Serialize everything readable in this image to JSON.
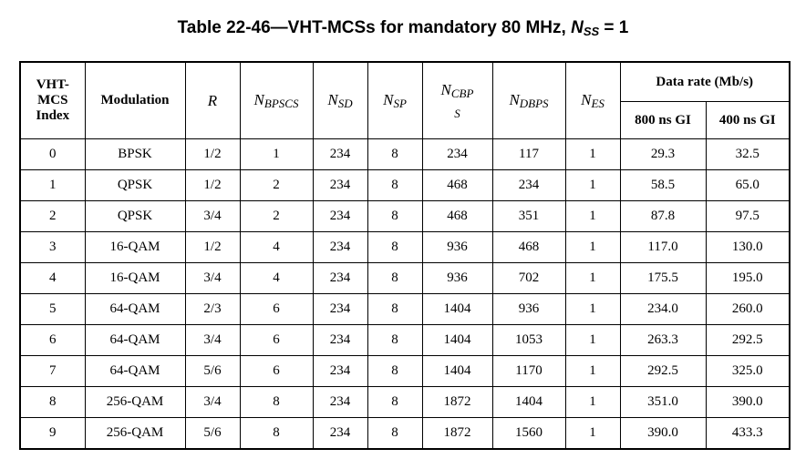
{
  "caption": {
    "prefix": "Table 22-46—VHT-MCSs for mandatory 80 MHz, ",
    "var": "N",
    "sub": "SS",
    "suffix": " = 1"
  },
  "headers": {
    "index": [
      "VHT-",
      "MCS",
      "Index"
    ],
    "modulation": "Modulation",
    "r": "R",
    "nbpscs": {
      "base": "N",
      "sub": "BPSCS"
    },
    "nsd": {
      "base": "N",
      "sub": "SD"
    },
    "nsp": {
      "base": "N",
      "sub": "SP"
    },
    "ncbps": {
      "base": "N",
      "sub": "CBP",
      "wrap": "S"
    },
    "ndbps": {
      "base": "N",
      "sub": "DBPS"
    },
    "nes": {
      "base": "N",
      "sub": "ES"
    },
    "data_rate": "Data rate (Mb/s)",
    "gi800": "800 ns GI",
    "gi400": "400 ns GI"
  },
  "rows": [
    [
      "0",
      "BPSK",
      "1/2",
      "1",
      "234",
      "8",
      "234",
      "117",
      "1",
      "29.3",
      "32.5"
    ],
    [
      "1",
      "QPSK",
      "1/2",
      "2",
      "234",
      "8",
      "468",
      "234",
      "1",
      "58.5",
      "65.0"
    ],
    [
      "2",
      "QPSK",
      "3/4",
      "2",
      "234",
      "8",
      "468",
      "351",
      "1",
      "87.8",
      "97.5"
    ],
    [
      "3",
      "16-QAM",
      "1/2",
      "4",
      "234",
      "8",
      "936",
      "468",
      "1",
      "117.0",
      "130.0"
    ],
    [
      "4",
      "16-QAM",
      "3/4",
      "4",
      "234",
      "8",
      "936",
      "702",
      "1",
      "175.5",
      "195.0"
    ],
    [
      "5",
      "64-QAM",
      "2/3",
      "6",
      "234",
      "8",
      "1404",
      "936",
      "1",
      "234.0",
      "260.0"
    ],
    [
      "6",
      "64-QAM",
      "3/4",
      "6",
      "234",
      "8",
      "1404",
      "1053",
      "1",
      "263.3",
      "292.5"
    ],
    [
      "7",
      "64-QAM",
      "5/6",
      "6",
      "234",
      "8",
      "1404",
      "1170",
      "1",
      "292.5",
      "325.0"
    ],
    [
      "8",
      "256-QAM",
      "3/4",
      "8",
      "234",
      "8",
      "1872",
      "1404",
      "1",
      "351.0",
      "390.0"
    ],
    [
      "9",
      "256-QAM",
      "5/6",
      "8",
      "234",
      "8",
      "1872",
      "1560",
      "1",
      "390.0",
      "433.3"
    ]
  ]
}
